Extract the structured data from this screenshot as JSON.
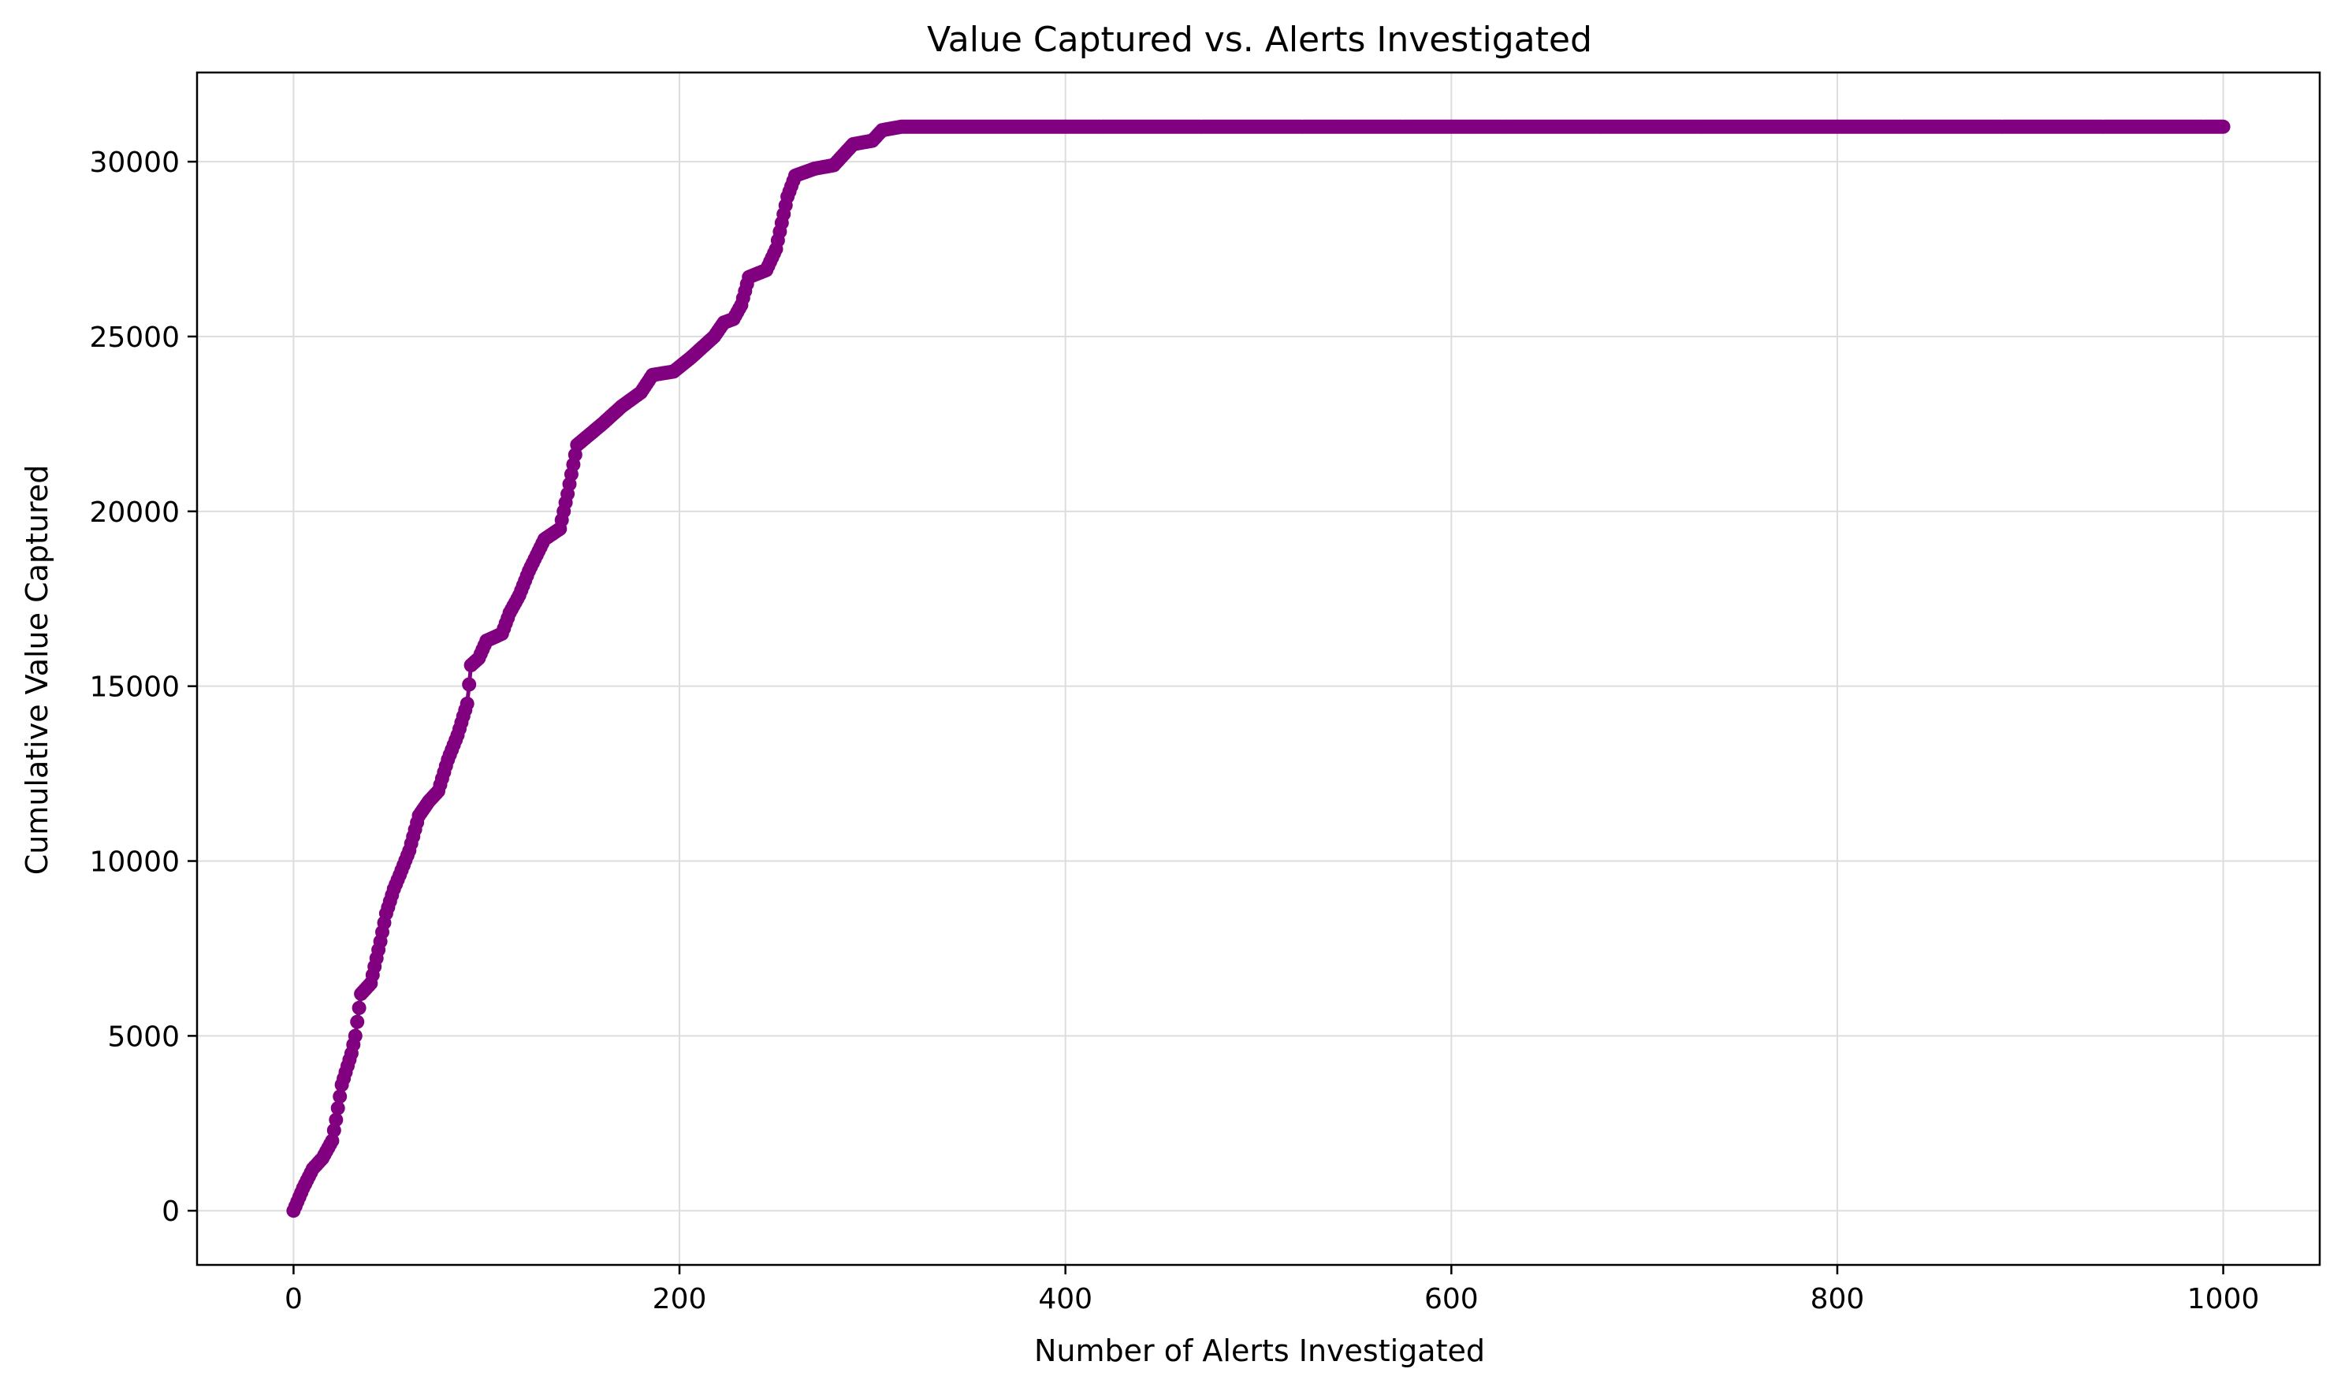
{
  "chart_data": {
    "type": "line",
    "title": "Value Captured vs. Alerts Investigated",
    "xlabel": "Number of Alerts Investigated",
    "ylabel": "Cumulative Value Captured",
    "xlim": [
      -50,
      1050
    ],
    "ylim": [
      -1550,
      32550
    ],
    "xticks": [
      0,
      200,
      400,
      600,
      800,
      1000
    ],
    "yticks": [
      0,
      5000,
      10000,
      15000,
      20000,
      25000,
      30000
    ],
    "xtick_labels": [
      "0",
      "200",
      "400",
      "600",
      "800",
      "1000"
    ],
    "ytick_labels": [
      "0",
      "5000",
      "10000",
      "15000",
      "20000",
      "25000",
      "30000"
    ],
    "grid": true,
    "legend": "none",
    "colors": {
      "series": "#800080",
      "axes": "#000000",
      "grid": "#dddddd"
    },
    "series": [
      {
        "marker": "circle",
        "x_range": [
          0,
          1000
        ],
        "key_points": [
          [
            0,
            0
          ],
          [
            5,
            650
          ],
          [
            10,
            1200
          ],
          [
            15,
            1500
          ],
          [
            20,
            2000
          ],
          [
            22,
            2600
          ],
          [
            25,
            3600
          ],
          [
            30,
            4500
          ],
          [
            32,
            5000
          ],
          [
            35,
            6200
          ],
          [
            40,
            6500
          ],
          [
            45,
            7700
          ],
          [
            48,
            8500
          ],
          [
            52,
            9200
          ],
          [
            55,
            9600
          ],
          [
            60,
            10300
          ],
          [
            65,
            11300
          ],
          [
            70,
            11700
          ],
          [
            75,
            12000
          ],
          [
            80,
            12900
          ],
          [
            85,
            13600
          ],
          [
            90,
            14500
          ],
          [
            92,
            15600
          ],
          [
            96,
            15800
          ],
          [
            100,
            16300
          ],
          [
            108,
            16500
          ],
          [
            112,
            17100
          ],
          [
            117,
            17600
          ],
          [
            122,
            18300
          ],
          [
            130,
            19200
          ],
          [
            138,
            19500
          ],
          [
            142,
            20500
          ],
          [
            147,
            21900
          ],
          [
            160,
            22500
          ],
          [
            170,
            23000
          ],
          [
            180,
            23400
          ],
          [
            186,
            23900
          ],
          [
            197,
            24000
          ],
          [
            206,
            24400
          ],
          [
            212,
            24700
          ],
          [
            218,
            25000
          ],
          [
            223,
            25400
          ],
          [
            228,
            25500
          ],
          [
            232,
            25900
          ],
          [
            236,
            26700
          ],
          [
            245,
            26900
          ],
          [
            250,
            27500
          ],
          [
            256,
            29000
          ],
          [
            260,
            29600
          ],
          [
            270,
            29800
          ],
          [
            280,
            29900
          ],
          [
            285,
            30200
          ],
          [
            290,
            30500
          ],
          [
            300,
            30600
          ],
          [
            305,
            30900
          ],
          [
            315,
            31000
          ],
          [
            1000,
            31000
          ]
        ]
      }
    ]
  }
}
